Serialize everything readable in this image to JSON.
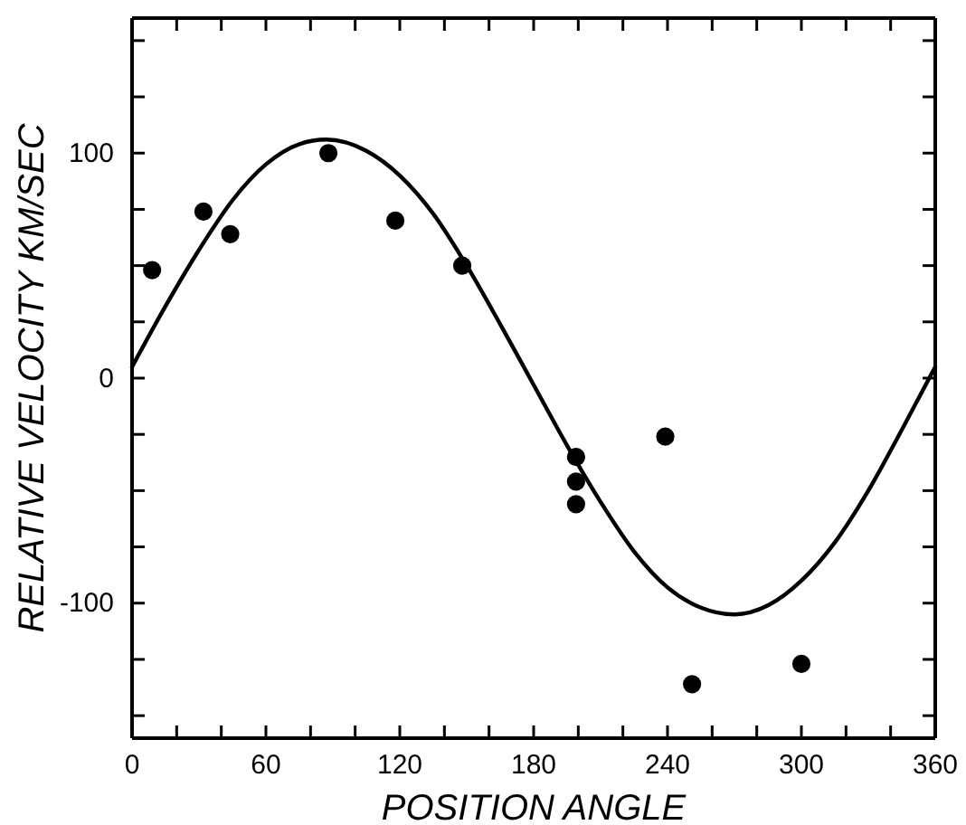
{
  "chart_data": {
    "type": "scatter",
    "xlabel": "POSITION ANGLE",
    "ylabel": "RELATIVE VELOCITY  KM/SEC",
    "xlim": [
      0,
      360
    ],
    "ylim": [
      -160,
      160
    ],
    "xticks": [
      0,
      {
        "value": 20,
        "label": null
      },
      {
        "value": 40,
        "label": null
      },
      60,
      {
        "value": 80,
        "label": null
      },
      {
        "value": 100,
        "label": null
      },
      120,
      {
        "value": 140,
        "label": null
      },
      {
        "value": 160,
        "label": null
      },
      180,
      {
        "value": 200,
        "label": null
      },
      {
        "value": 220,
        "label": null
      },
      240,
      {
        "value": 260,
        "label": null
      },
      {
        "value": 280,
        "label": null
      },
      300,
      {
        "value": 320,
        "label": null
      },
      {
        "value": 340,
        "label": null
      },
      360
    ],
    "yticks": [
      {
        "value": -150,
        "label": null
      },
      {
        "value": -125,
        "label": null
      },
      -100,
      {
        "value": -75,
        "label": null
      },
      {
        "value": -50,
        "label": null
      },
      {
        "value": -25,
        "label": null
      },
      0,
      {
        "value": 25,
        "label": null
      },
      {
        "value": 50,
        "label": null
      },
      {
        "value": 75,
        "label": null
      },
      100,
      {
        "value": 125,
        "label": null
      },
      {
        "value": 150,
        "label": null
      }
    ],
    "marker": "circle",
    "grid": false,
    "series": [
      {
        "color": "#000000",
        "x": [
          9,
          32,
          44,
          88,
          118,
          148,
          199,
          199,
          199,
          239,
          251,
          300
        ],
        "values": [
          48,
          74,
          64,
          100,
          70,
          50,
          -35,
          -46,
          -56,
          -26,
          -136,
          -127
        ]
      },
      {
        "type": "line",
        "color": "#000000",
        "marker": "none",
        "x": [
          0,
          15,
          30,
          45,
          60,
          75,
          87,
          105,
          120,
          135,
          150,
          165,
          180,
          195,
          210,
          225,
          240,
          255,
          270,
          285,
          300,
          315,
          330,
          345,
          360
        ],
        "values": [
          5,
          32,
          57,
          79,
          95,
          104,
          106,
          101,
          90,
          73,
          50,
          24,
          -3,
          -30,
          -55,
          -77,
          -93,
          -102,
          -105,
          -101,
          -90,
          -73,
          -50,
          -23,
          5
        ]
      }
    ]
  }
}
